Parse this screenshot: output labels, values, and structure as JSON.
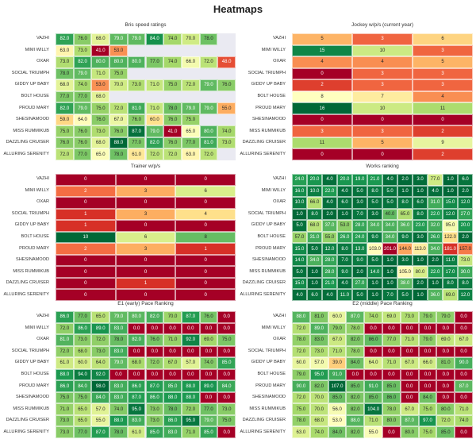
{
  "title": "Heatmaps",
  "horses": [
    "VAZHI",
    "MIMI WILLY",
    "OXAR",
    "SOCIAL TRIUMPH",
    "GIDDY UP BABY",
    "BOLT HOUSE",
    "PROUD MARY",
    "SHESINAMOOD",
    "MISS RUMMIKUB",
    "DAZZLING CRUISER",
    "ALLURING SERENITY"
  ],
  "colormap": [
    "#a50026",
    "#d73027",
    "#f46d43",
    "#fdae61",
    "#fee08b",
    "#ffffbf",
    "#d9ef8b",
    "#a6d96a",
    "#66bd63",
    "#1a9850",
    "#006837"
  ],
  "chart_data": [
    {
      "type": "heatmap",
      "title": "Bris speed ratings",
      "decimals": 1,
      "reverse": false,
      "range": [
        41,
        88
      ],
      "values": [
        [
          82,
          76,
          68,
          79,
          79,
          84,
          74,
          70,
          78,
          null
        ],
        [
          63,
          73,
          41,
          53,
          null,
          null,
          null,
          null,
          null,
          null
        ],
        [
          73,
          82,
          80,
          80,
          80,
          77,
          74,
          66,
          72,
          48
        ],
        [
          78,
          79,
          71,
          75,
          null,
          null,
          null,
          null,
          null,
          null
        ],
        [
          68,
          74,
          53,
          70,
          73,
          71,
          75,
          72,
          79,
          76
        ],
        [
          77,
          77,
          68,
          null,
          null,
          null,
          null,
          null,
          null,
          null
        ],
        [
          82,
          79,
          75,
          72,
          81,
          71,
          78,
          79,
          79,
          55
        ],
        [
          59,
          64,
          76,
          67,
          76,
          60,
          76,
          75,
          null,
          null
        ],
        [
          75,
          76,
          73,
          76,
          87,
          79,
          41,
          65,
          80,
          74
        ],
        [
          76,
          76,
          68,
          88,
          77,
          82,
          76,
          77,
          81,
          73
        ],
        [
          72,
          77,
          65,
          78,
          61,
          72,
          72,
          63,
          72,
          null
        ]
      ]
    },
    {
      "type": "heatmap",
      "title": "Jockey w/p/s (current year)",
      "decimals": 0,
      "reverse": false,
      "range": [
        0,
        16
      ],
      "values": [
        [
          5,
          3,
          6
        ],
        [
          15,
          10,
          3
        ],
        [
          4,
          4,
          5
        ],
        [
          0,
          3,
          3
        ],
        [
          2,
          3,
          3
        ],
        [
          8,
          7,
          4
        ],
        [
          16,
          10,
          11
        ],
        [
          0,
          0,
          0
        ],
        [
          3,
          3,
          2
        ],
        [
          11,
          5,
          9
        ],
        [
          0,
          0,
          2
        ]
      ]
    },
    {
      "type": "heatmap",
      "title": "Trainer w/p/s",
      "decimals": 0,
      "reverse": false,
      "range": [
        0,
        10
      ],
      "values": [
        [
          0,
          0,
          0
        ],
        [
          2,
          3,
          6
        ],
        [
          0,
          0,
          0
        ],
        [
          1,
          3,
          4
        ],
        [
          1,
          0,
          0
        ],
        [
          10,
          6,
          8
        ],
        [
          2,
          3,
          1
        ],
        [
          0,
          0,
          0
        ],
        [
          0,
          0,
          0
        ],
        [
          0,
          1,
          0
        ],
        [
          0,
          0,
          0
        ]
      ]
    },
    {
      "type": "heatmap",
      "title": "Works ranking",
      "decimals": 1,
      "reverse": true,
      "range": [
        1,
        201
      ],
      "values": [
        [
          24,
          20,
          4,
          20,
          19,
          21,
          4,
          2,
          3,
          77,
          1,
          6
        ],
        [
          16,
          10,
          22,
          4,
          5,
          8,
          5,
          1,
          1,
          4,
          1,
          2
        ],
        [
          10,
          66,
          4,
          6,
          3,
          5,
          5,
          8,
          6,
          31,
          15,
          12
        ],
        [
          1,
          8,
          2,
          1,
          7,
          3,
          40,
          65,
          8,
          22,
          12,
          27
        ],
        [
          5,
          68,
          37,
          53,
          28,
          34,
          34,
          36,
          23,
          32,
          95,
          20
        ],
        [
          57,
          31,
          55,
          26,
          24,
          9,
          34,
          9,
          3,
          26,
          122,
          2
        ],
        [
          15,
          5,
          12,
          8,
          13,
          103,
          201,
          144,
          113,
          34,
          181,
          157
        ],
        [
          14,
          34,
          28,
          7,
          9,
          5,
          1,
          3,
          1,
          2,
          11,
          73
        ],
        [
          5,
          1,
          28,
          9,
          2,
          14,
          1,
          105,
          80,
          22,
          17,
          30
        ],
        [
          15,
          1,
          21,
          4,
          27,
          1,
          1,
          38,
          2,
          1,
          8,
          8
        ],
        [
          4,
          6,
          4,
          11,
          5,
          1,
          7,
          5,
          1,
          36,
          69,
          12
        ]
      ]
    },
    {
      "type": "heatmap",
      "title": "E1 (early) Pace Ranking",
      "decimals": 1,
      "reverse": false,
      "range": [
        0,
        98
      ],
      "values": [
        [
          86,
          77,
          65,
          79,
          80,
          82,
          70,
          87,
          76,
          0
        ],
        [
          72,
          86,
          89,
          83,
          0,
          0,
          0,
          0,
          0,
          0
        ],
        [
          81,
          73,
          72,
          78,
          82,
          76,
          71,
          92,
          69,
          75
        ],
        [
          72,
          68,
          73,
          83,
          0,
          0,
          0,
          0,
          0,
          0
        ],
        [
          61,
          60,
          64,
          79,
          68,
          72,
          67,
          57,
          74,
          85
        ],
        [
          88,
          94,
          92,
          0,
          0,
          0,
          0,
          0,
          0,
          0
        ],
        [
          86,
          84,
          98,
          83,
          86,
          87,
          85,
          88,
          89,
          84
        ],
        [
          75,
          75,
          84,
          83,
          87,
          86,
          88,
          88,
          0,
          0
        ],
        [
          71,
          65,
          57,
          74,
          95,
          73,
          78,
          72,
          77,
          73
        ],
        [
          73,
          65,
          55,
          88,
          83,
          73,
          86,
          95,
          79,
          75
        ],
        [
          73,
          77,
          87,
          78,
          61,
          85,
          83,
          71,
          85,
          0
        ]
      ]
    },
    {
      "type": "heatmap",
      "title": "E2 (middle) Pace Ranking",
      "decimals": 1,
      "reverse": false,
      "range": [
        0,
        107
      ],
      "values": [
        [
          88,
          81,
          60,
          87,
          74,
          69,
          73,
          79,
          79,
          0
        ],
        [
          72,
          89,
          79,
          78,
          0,
          0,
          0,
          0,
          0,
          0
        ],
        [
          78,
          83,
          67,
          82,
          86,
          77,
          71,
          79,
          69,
          67
        ],
        [
          72,
          73,
          71,
          78,
          0,
          0,
          0,
          0,
          0,
          0
        ],
        [
          60,
          57,
          39,
          84,
          64,
          71,
          67,
          66,
          81,
          90
        ],
        [
          79,
          95,
          91,
          0,
          0,
          0,
          0,
          0,
          0,
          0
        ],
        [
          90,
          82,
          107,
          85,
          91,
          85,
          0,
          0,
          0,
          87
        ],
        [
          72,
          70,
          85,
          82,
          85,
          86,
          0,
          84,
          0,
          0
        ],
        [
          75,
          70,
          56,
          82,
          104,
          78,
          67,
          75,
          80,
          71
        ],
        [
          78,
          68,
          53,
          88,
          71,
          80,
          87,
          97,
          72,
          74
        ],
        [
          63,
          74,
          84,
          82,
          55,
          0,
          80,
          75,
          85,
          0
        ]
      ]
    }
  ]
}
